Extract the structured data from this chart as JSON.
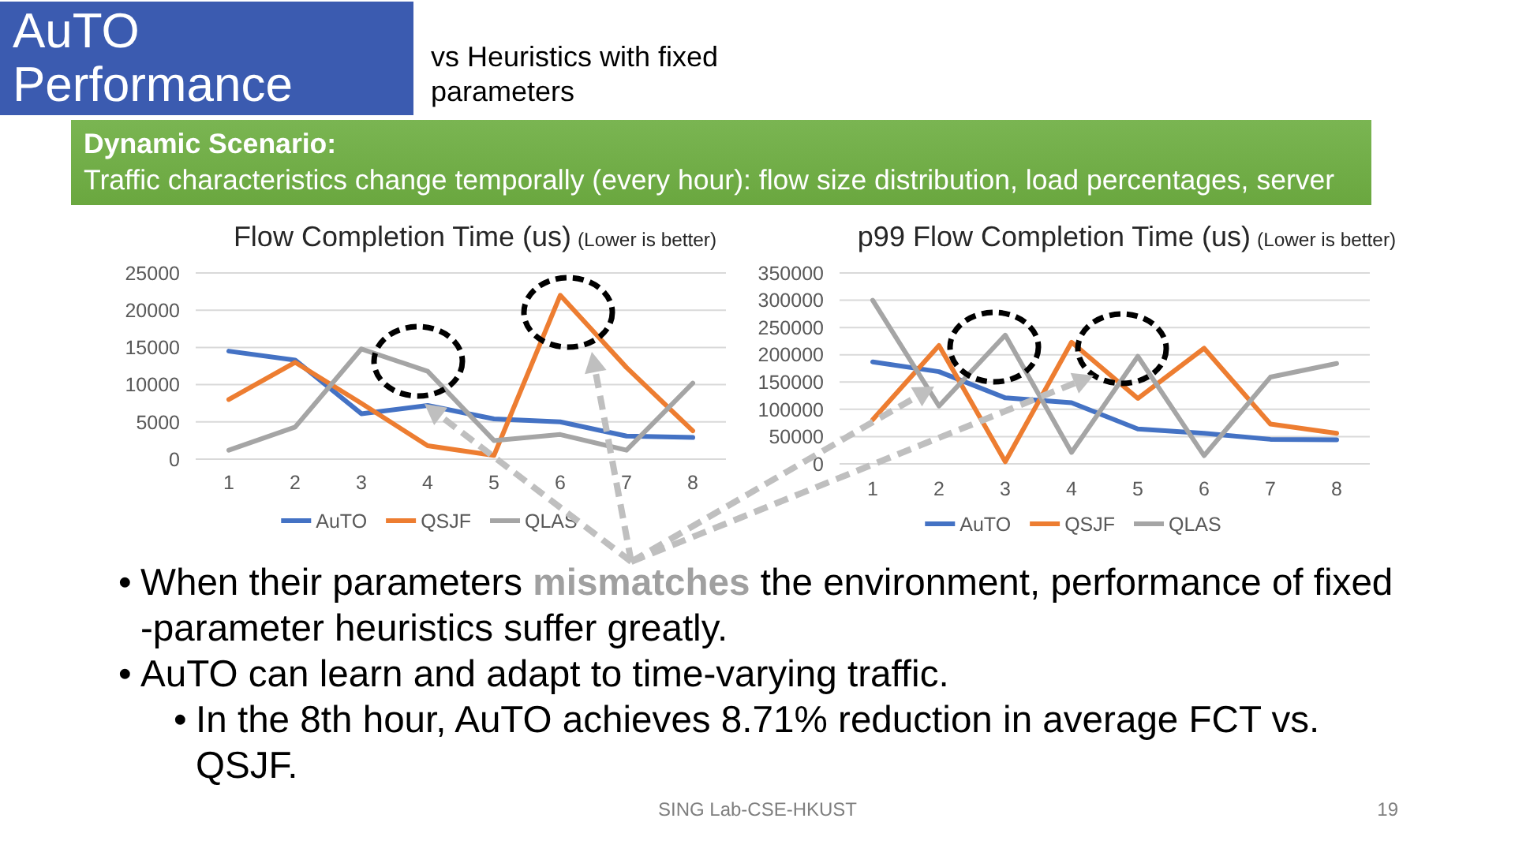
{
  "chart_data": [
    {
      "type": "other",
      "title": "AuTO Performance",
      "subtitle": "vs Heuristics with fixed parameters",
      "annotations": [
        "Dynamic Scenario:",
        "Traffic characteristics change temporally (every hour): flow size distribution, load percentages, server"
      ]
    },
    {
      "type": "line",
      "title": "Flow Completion Time (us)",
      "subtitle": "(Lower is better)",
      "categories": [
        "1",
        "2",
        "3",
        "4",
        "5",
        "6",
        "7",
        "8"
      ],
      "series": [
        {
          "name": "AuTO",
          "color": "#4472c4",
          "values": [
            14500,
            13300,
            6100,
            7200,
            5400,
            5000,
            3100,
            2900
          ]
        },
        {
          "name": "QSJF",
          "color": "#ed7d31",
          "values": [
            8000,
            13000,
            7500,
            1800,
            500,
            22000,
            12300,
            3800
          ]
        },
        {
          "name": "QLAS",
          "color": "#a5a5a5",
          "values": [
            1200,
            4300,
            14800,
            11800,
            2500,
            3300,
            1200,
            10200
          ]
        }
      ],
      "ylim": [
        0,
        25000
      ],
      "yticks": [
        0,
        5000,
        10000,
        15000,
        20000,
        25000
      ],
      "grid": "y",
      "legend": "bottom",
      "line_style": "solid"
    },
    {
      "type": "line",
      "title": "p99 Flow Completion Time (us)",
      "subtitle": "(Lower is better)",
      "categories": [
        "1",
        "2",
        "3",
        "4",
        "5",
        "6",
        "7",
        "8"
      ],
      "series": [
        {
          "name": "AuTO",
          "color": "#4472c4",
          "values": [
            187000,
            169000,
            121000,
            112000,
            64000,
            56000,
            45000,
            44000
          ]
        },
        {
          "name": "QSJF",
          "color": "#ed7d31",
          "values": [
            81000,
            217000,
            4000,
            223000,
            120000,
            212000,
            73000,
            56000
          ]
        },
        {
          "name": "QLAS",
          "color": "#a5a5a5",
          "values": [
            300000,
            106000,
            236000,
            21000,
            197000,
            15000,
            159000,
            184000
          ]
        }
      ],
      "ylim": [
        0,
        350000
      ],
      "yticks": [
        0,
        50000,
        100000,
        150000,
        200000,
        250000,
        300000,
        350000
      ],
      "grid": "y",
      "legend": "bottom",
      "line_style": "solid"
    },
    {
      "type": "other",
      "annotations": [
        "•",
        "When their parameters",
        "mismatches",
        "the environment, performance of fixed -parameter heuristics suffer greatly.",
        "•",
        "AuTO can learn and adapt to time-varying traffic.",
        "•",
        "In the 8th hour, AuTO achieves 8.71% reduction in average FCT vs. QSJF.",
        "SING Lab-CSE-HKUST",
        "19"
      ]
    }
  ]
}
